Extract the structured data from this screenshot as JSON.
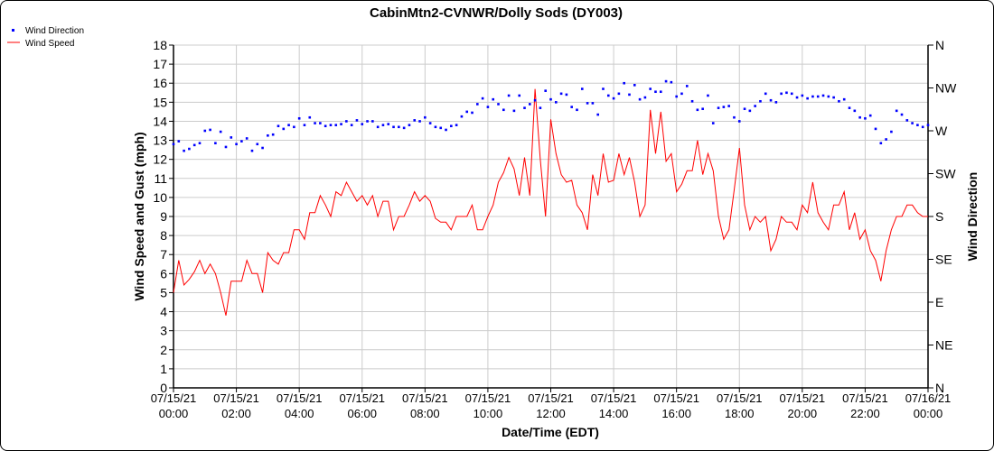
{
  "chart_data": {
    "type": "line",
    "title": "CabinMtn2-CVNWR/Dolly Sods (DY003)",
    "xlabel": "Date/Time (EDT)",
    "ylabel": "Wind Speed and Gust (mph)",
    "y2label": "Wind Direction",
    "ylim": [
      0,
      18
    ],
    "y2lim": [
      0,
      360
    ],
    "grid": true,
    "legend_position": "top-left",
    "interval_minutes": 10,
    "x_ticks": [
      [
        "07/15/21",
        "00:00"
      ],
      [
        "07/15/21",
        "02:00"
      ],
      [
        "07/15/21",
        "04:00"
      ],
      [
        "07/15/21",
        "06:00"
      ],
      [
        "07/15/21",
        "08:00"
      ],
      [
        "07/15/21",
        "10:00"
      ],
      [
        "07/15/21",
        "12:00"
      ],
      [
        "07/15/21",
        "14:00"
      ],
      [
        "07/15/21",
        "16:00"
      ],
      [
        "07/15/21",
        "18:00"
      ],
      [
        "07/15/21",
        "20:00"
      ],
      [
        "07/15/21",
        "22:00"
      ],
      [
        "07/16/21",
        "00:00"
      ]
    ],
    "y_ticks": [
      "0",
      "1",
      "2",
      "3",
      "4",
      "5",
      "6",
      "7",
      "8",
      "9",
      "10",
      "11",
      "12",
      "13",
      "14",
      "15",
      "16",
      "17",
      "18"
    ],
    "y2_ticks": [
      "N",
      "NE",
      "E",
      "SE",
      "S",
      "SW",
      "W",
      "NW",
      "N"
    ],
    "series": [
      {
        "name": "Wind Direction",
        "axis": "right",
        "style": "dots",
        "color": "#0000ff",
        "values": [
          256,
          259,
          249,
          251,
          255,
          257,
          270,
          271,
          257,
          269,
          253,
          263,
          256,
          259,
          262,
          249,
          256,
          252,
          265,
          266,
          275,
          272,
          276,
          274,
          283,
          276,
          284,
          278,
          278,
          275,
          276,
          276,
          277,
          280,
          276,
          281,
          277,
          280,
          280,
          274,
          276,
          277,
          274,
          274,
          273,
          276,
          281,
          280,
          284,
          278,
          274,
          273,
          271,
          275,
          276,
          285,
          290,
          289,
          298,
          304,
          295,
          303,
          298,
          292,
          307,
          291,
          307,
          294,
          298,
          302,
          294,
          312,
          303,
          300,
          309,
          308,
          295,
          292,
          314,
          299,
          299,
          287,
          314,
          307,
          304,
          309,
          320,
          308,
          318,
          303,
          305,
          314,
          311,
          311,
          322,
          321,
          306,
          309,
          317,
          301,
          292,
          293,
          307,
          278,
          294,
          295,
          296,
          284,
          280,
          293,
          291,
          296,
          301,
          309,
          302,
          300,
          309,
          310,
          309,
          305,
          307,
          304,
          306,
          306,
          307,
          306,
          305,
          301,
          303,
          294,
          291,
          284,
          283,
          286,
          272,
          257,
          261,
          269,
          291,
          287,
          281,
          278,
          276,
          274,
          276
        ]
      },
      {
        "name": "Wind Speed",
        "axis": "left",
        "style": "line",
        "color": "#ff0000",
        "values": [
          5.0,
          6.7,
          5.4,
          5.7,
          6.1,
          6.7,
          6.0,
          6.5,
          6.0,
          5.0,
          3.8,
          5.6,
          5.6,
          5.6,
          6.7,
          6.0,
          6.0,
          5.0,
          7.1,
          6.7,
          6.5,
          7.1,
          7.1,
          8.3,
          8.3,
          7.8,
          9.2,
          9.2,
          10.1,
          9.6,
          9.0,
          10.3,
          10.1,
          10.8,
          10.3,
          9.8,
          10.1,
          9.6,
          10.1,
          9.0,
          9.8,
          9.8,
          8.3,
          9.0,
          9.0,
          9.6,
          10.3,
          9.8,
          10.1,
          9.8,
          8.9,
          8.7,
          8.7,
          8.3,
          9.0,
          9.0,
          9.0,
          9.6,
          8.3,
          8.3,
          9.0,
          9.6,
          10.8,
          11.3,
          12.1,
          11.5,
          10.1,
          12.1,
          10.1,
          15.7,
          12.0,
          9.0,
          14.1,
          12.3,
          11.2,
          10.8,
          10.9,
          9.6,
          9.2,
          8.3,
          11.2,
          10.1,
          12.3,
          10.8,
          10.9,
          12.3,
          11.2,
          12.1,
          10.8,
          9.0,
          9.6,
          14.6,
          12.3,
          14.5,
          11.9,
          12.3,
          10.3,
          10.7,
          11.4,
          11.4,
          13.0,
          11.2,
          12.3,
          11.4,
          9.0,
          7.8,
          8.3,
          10.4,
          12.6,
          9.6,
          8.3,
          9.0,
          8.7,
          9.0,
          7.2,
          7.8,
          9.0,
          8.7,
          8.7,
          8.3,
          9.6,
          9.2,
          10.8,
          9.2,
          8.7,
          8.3,
          9.6,
          9.6,
          10.3,
          8.3,
          9.2,
          7.8,
          8.3,
          7.2,
          6.7,
          5.6,
          7.2,
          8.3,
          9.0,
          9.0,
          9.6,
          9.6,
          9.2,
          9.0,
          9.0
        ]
      }
    ]
  }
}
